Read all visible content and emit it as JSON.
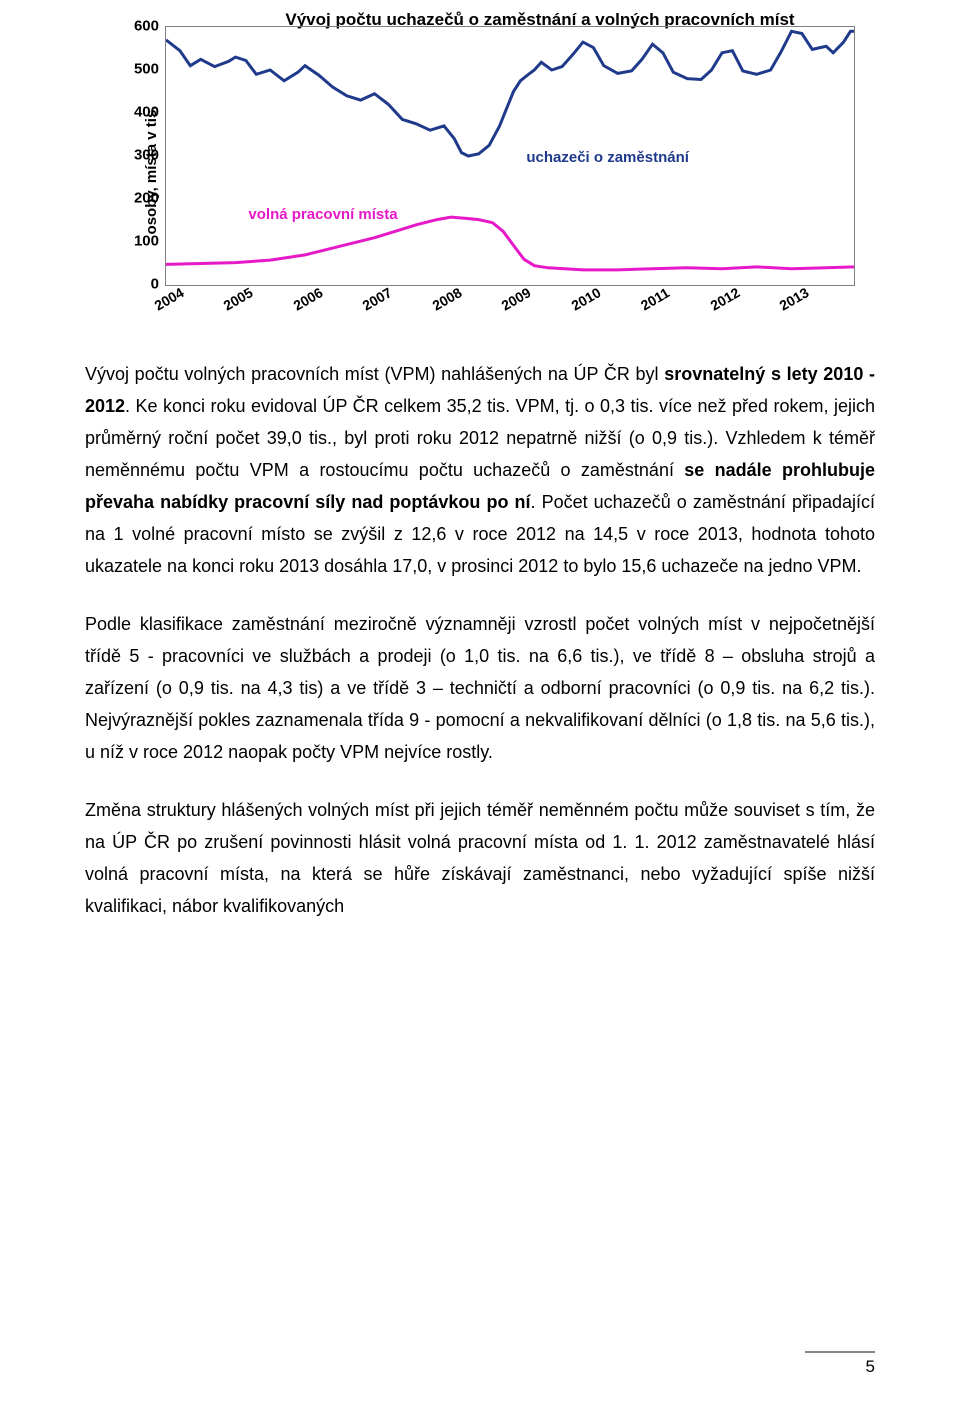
{
  "chart": {
    "type": "line",
    "title": "Vývoj počtu uchazečů o zaměstnání a volných pracovních míst",
    "ylabel": "osoby, místa v tis.",
    "ylim": [
      0,
      600
    ],
    "ytick_step": 100,
    "yticks": [
      "0",
      "100",
      "200",
      "300",
      "400",
      "500",
      "600"
    ],
    "xlim": [
      2004,
      2013.9
    ],
    "xticks": [
      "2004",
      "2005",
      "2006",
      "2007",
      "2008",
      "2009",
      "2010",
      "2011",
      "2012",
      "2013"
    ],
    "border_color": "#7f7f7f",
    "background_color": "#ffffff",
    "series": [
      {
        "name": "uchazeči o zaměstnání",
        "color": "#1f3a8a",
        "line_width": 3,
        "label_pos": {
          "x": 2009.2,
          "y": 315
        },
        "label_color": "#1f3a8a",
        "data": [
          [
            2004.0,
            570
          ],
          [
            2004.2,
            545
          ],
          [
            2004.35,
            510
          ],
          [
            2004.5,
            525
          ],
          [
            2004.7,
            508
          ],
          [
            2004.9,
            520
          ],
          [
            2005.0,
            530
          ],
          [
            2005.15,
            522
          ],
          [
            2005.3,
            490
          ],
          [
            2005.5,
            500
          ],
          [
            2005.7,
            475
          ],
          [
            2005.9,
            495
          ],
          [
            2006.0,
            510
          ],
          [
            2006.2,
            488
          ],
          [
            2006.4,
            460
          ],
          [
            2006.6,
            440
          ],
          [
            2006.8,
            430
          ],
          [
            2007.0,
            445
          ],
          [
            2007.2,
            420
          ],
          [
            2007.4,
            385
          ],
          [
            2007.6,
            375
          ],
          [
            2007.8,
            360
          ],
          [
            2008.0,
            370
          ],
          [
            2008.15,
            340
          ],
          [
            2008.25,
            308
          ],
          [
            2008.35,
            300
          ],
          [
            2008.5,
            305
          ],
          [
            2008.65,
            325
          ],
          [
            2008.8,
            370
          ],
          [
            2008.9,
            410
          ],
          [
            2009.0,
            450
          ],
          [
            2009.1,
            475
          ],
          [
            2009.2,
            488
          ],
          [
            2009.3,
            500
          ],
          [
            2009.4,
            518
          ],
          [
            2009.55,
            500
          ],
          [
            2009.7,
            508
          ],
          [
            2009.85,
            535
          ],
          [
            2010.0,
            565
          ],
          [
            2010.15,
            552
          ],
          [
            2010.3,
            510
          ],
          [
            2010.5,
            492
          ],
          [
            2010.7,
            498
          ],
          [
            2010.85,
            525
          ],
          [
            2011.0,
            560
          ],
          [
            2011.15,
            540
          ],
          [
            2011.3,
            495
          ],
          [
            2011.5,
            480
          ],
          [
            2011.7,
            478
          ],
          [
            2011.85,
            500
          ],
          [
            2012.0,
            540
          ],
          [
            2012.15,
            545
          ],
          [
            2012.3,
            498
          ],
          [
            2012.5,
            490
          ],
          [
            2012.7,
            500
          ],
          [
            2012.85,
            542
          ],
          [
            2013.0,
            590
          ],
          [
            2013.15,
            585
          ],
          [
            2013.3,
            548
          ],
          [
            2013.5,
            555
          ],
          [
            2013.6,
            540
          ],
          [
            2013.75,
            565
          ],
          [
            2013.85,
            590
          ],
          [
            2013.9,
            590
          ]
        ]
      },
      {
        "name": "volná pracovní místa",
        "color": "#e619c8",
        "line_width": 3,
        "label_pos": {
          "x": 2005.2,
          "y": 182
        },
        "label_color": "#e619c8",
        "data": [
          [
            2004.0,
            48
          ],
          [
            2004.5,
            50
          ],
          [
            2005.0,
            52
          ],
          [
            2005.5,
            58
          ],
          [
            2006.0,
            70
          ],
          [
            2006.5,
            90
          ],
          [
            2007.0,
            110
          ],
          [
            2007.3,
            125
          ],
          [
            2007.6,
            140
          ],
          [
            2007.9,
            152
          ],
          [
            2008.1,
            158
          ],
          [
            2008.3,
            155
          ],
          [
            2008.5,
            152
          ],
          [
            2008.7,
            145
          ],
          [
            2008.85,
            125
          ],
          [
            2009.0,
            92
          ],
          [
            2009.15,
            60
          ],
          [
            2009.3,
            45
          ],
          [
            2009.5,
            40
          ],
          [
            2010.0,
            35
          ],
          [
            2010.5,
            35
          ],
          [
            2011.0,
            38
          ],
          [
            2011.5,
            40
          ],
          [
            2012.0,
            38
          ],
          [
            2012.5,
            42
          ],
          [
            2013.0,
            38
          ],
          [
            2013.5,
            40
          ],
          [
            2013.9,
            42
          ]
        ]
      }
    ]
  },
  "paragraphs": {
    "p1": "Vývoj počtu volných pracovních míst (VPM) nahlášených na ÚP ČR byl srovnatelný s lety 2010 - 2012. Ke konci roku evidoval ÚP ČR celkem 35,2 tis. VPM, tj. o 0,3 tis. více než před rokem, jejich průměrný roční počet 39,0 tis., byl proti roku 2012 nepatrně nižší (o 0,9 tis.). Vzhledem k téměř neměnnému počtu VPM a rostoucímu počtu uchazečů o zaměstnání se nadále prohlubuje převaha nabídky pracovní síly nad poptávkou po ní. Počet uchazečů o zaměstnání připadající na 1 volné pracovní místo se zvýšil z 12,6 v roce 2012 na 14,5 v roce 2013, hodnota tohoto ukazatele na konci roku 2013 dosáhla 17,0, v prosinci 2012 to bylo 15,6 uchazeče na jedno VPM.",
    "p2": "Podle klasifikace zaměstnání meziročně významněji vzrostl počet volných míst v nejpočetnější třídě 5 - pracovníci ve službách a prodeji (o 1,0 tis. na 6,6 tis.), ve třídě 8 – obsluha strojů a zařízení (o 0,9 tis. na 4,3 tis) a ve třídě 3 – techničtí a odborní pracovníci (o 0,9 tis. na 6,2 tis.). Nejvýraznější pokles zaznamenala třída 9 - pomocní a nekvalifikovaní dělníci (o 1,8 tis. na 5,6 tis.), u níž v roce 2012 naopak počty VPM nejvíce rostly.",
    "p3": "Změna struktury hlášených volných míst při jejich téměř neměnném počtu může souviset s tím, že na ÚP ČR po zrušení povinnosti hlásit volná pracovní místa od 1. 1. 2012 zaměstnavatelé hlásí volná pracovní místa, na která se hůře získávají zaměstnanci, nebo vyžadující spíše nižší kvalifikaci, nábor kvalifikovaných"
  },
  "page_number": "5"
}
